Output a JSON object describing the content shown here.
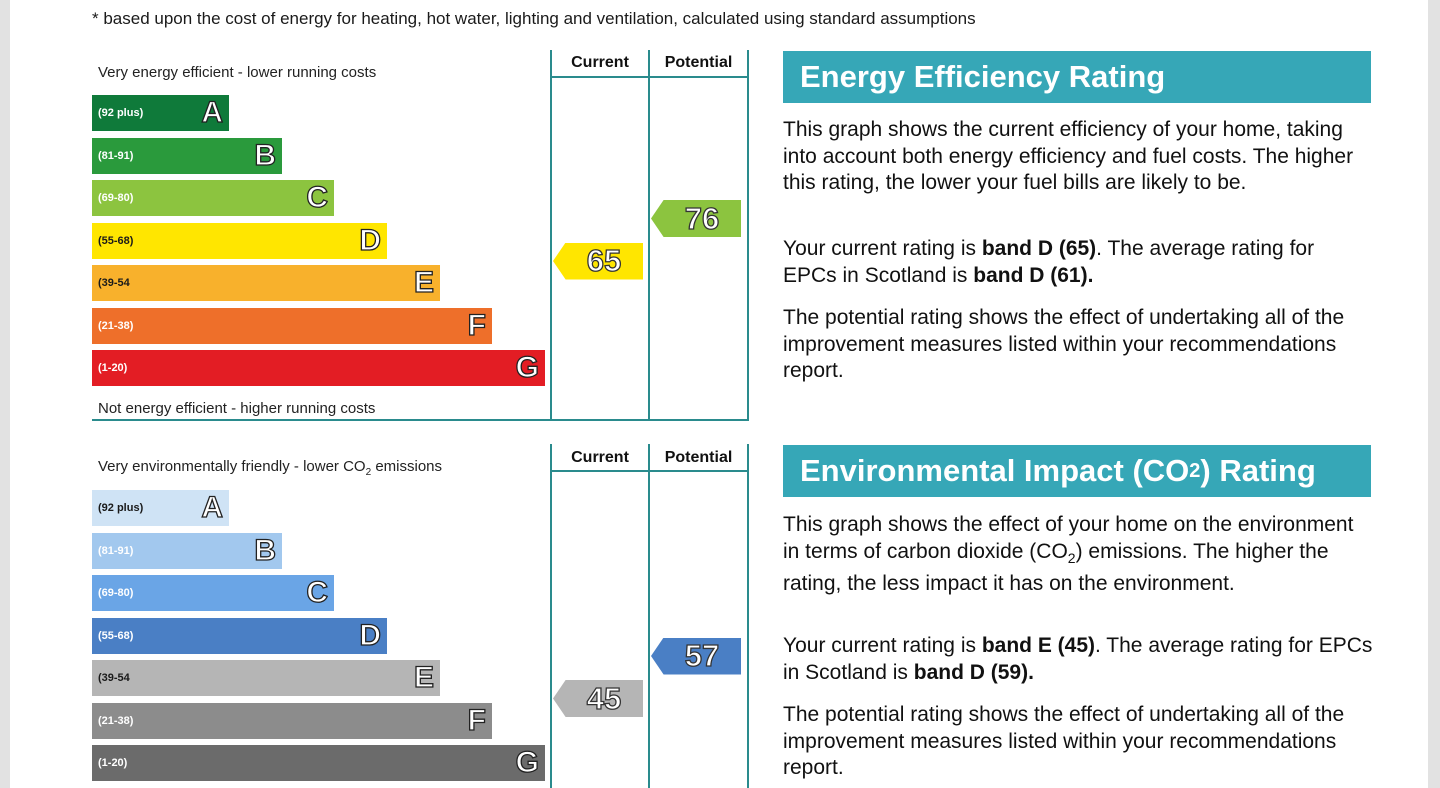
{
  "footnote": "* based upon the cost of energy for heating, hot water, lighting and ventilation, calculated using standard assumptions",
  "energy": {
    "top_label": "Very energy efficient - lower running costs",
    "bottom_label": "Not energy efficient - higher running costs",
    "col_current": "Current",
    "col_potential": "Potential",
    "bands": [
      {
        "range": "(92 plus)",
        "letter": "A",
        "color": "#0f7a3a"
      },
      {
        "range": "(81-91)",
        "letter": "B",
        "color": "#2a9a3c"
      },
      {
        "range": "(69-80)",
        "letter": "C",
        "color": "#8cc43f"
      },
      {
        "range": "(55-68)",
        "letter": "D",
        "color": "#ffe600"
      },
      {
        "range": "(39-54",
        "letter": "E",
        "color": "#f8b12c"
      },
      {
        "range": "(21-38)",
        "letter": "F",
        "color": "#ee6f2a"
      },
      {
        "range": "(1-20)",
        "letter": "G",
        "color": "#e31d24"
      }
    ],
    "current": 65,
    "current_color": "#ffe600",
    "potential": 76,
    "potential_color": "#8cc43f",
    "heading": "Energy Efficiency Rating",
    "para1": "This graph shows the current efficiency of your home, taking into account both energy efficiency and fuel costs. The higher this rating, the lower your fuel bills are likely to be.",
    "para2_pre": "Your current rating is ",
    "para2_b1": "band D (65)",
    "para2_mid": ". The average rating for EPCs in Scotland is ",
    "para2_b2": "band D (61).",
    "para3": "The potential rating shows the effect of undertaking all of the improvement measures listed within your recommendations report."
  },
  "environment": {
    "top_label_pre": "Very environmentally friendly - lower CO",
    "top_label_sub": "2",
    "top_label_post": " emissions",
    "col_current": "Current",
    "col_potential": "Potential",
    "bands": [
      {
        "range": "(92 plus)",
        "letter": "A",
        "color": "#cfe3f5"
      },
      {
        "range": "(81-91)",
        "letter": "B",
        "color": "#a2c8ee"
      },
      {
        "range": "(69-80)",
        "letter": "C",
        "color": "#6aa5e6"
      },
      {
        "range": "(55-68)",
        "letter": "D",
        "color": "#4a7fc5"
      },
      {
        "range": "(39-54",
        "letter": "E",
        "color": "#b5b5b5"
      },
      {
        "range": "(21-38)",
        "letter": "F",
        "color": "#8c8c8c"
      },
      {
        "range": "(1-20)",
        "letter": "G",
        "color": "#6b6b6b"
      }
    ],
    "current": 45,
    "current_color": "#b5b5b5",
    "potential": 57,
    "potential_color": "#4a7fc5",
    "heading_pre": "Environmental Impact (CO",
    "heading_sub": "2",
    "heading_post": ") Rating",
    "para1_pre": "This graph shows the effect of your home on the environment in terms of carbon dioxide (CO",
    "para1_sub": "2",
    "para1_post": ") emissions. The higher the rating, the less impact it has on the environment.",
    "para2_pre": "Your current rating is ",
    "para2_b1": "band E (45)",
    "para2_mid": ". The average rating for EPCs in Scotland is ",
    "para2_b2": "band D (59).",
    "para3": "The potential rating shows the effect of undertaking all of the improvement measures listed within your recommendations report."
  }
}
